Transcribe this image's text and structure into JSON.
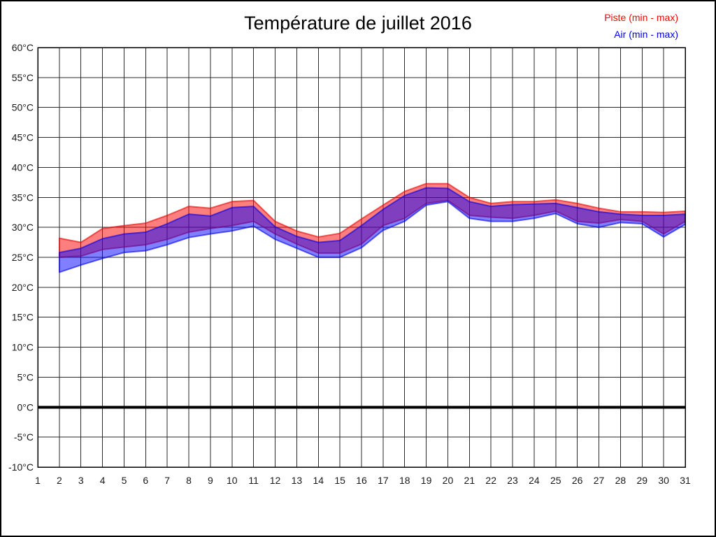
{
  "title": "Température de juillet 2016",
  "legend": {
    "piste": "Piste (min - max)",
    "air": "Air (min - max)"
  },
  "colors": {
    "piste": "#ff0000",
    "air": "#0000ee",
    "piste_fill": "rgba(255,0,0,0.5)",
    "piste_stroke": "rgba(230,0,0,0.6)",
    "air_fill": "rgba(0,0,255,0.5)",
    "air_stroke": "rgba(0,0,230,0.6)",
    "grid": "#2a2a2a",
    "axis": "#000000",
    "zero_line": "#000000"
  },
  "chart_data": {
    "type": "area",
    "subtype": "min-max-bands",
    "title": "Température de juillet 2016",
    "xlabel": "",
    "ylabel": "",
    "units": "°C",
    "xlim": [
      1,
      31
    ],
    "ylim": [
      -10,
      60
    ],
    "y_tick_step": 5,
    "grid": true,
    "zero_line_bold": true,
    "legend_position": "top-right",
    "x_tick_labels": [
      "1",
      "2",
      "3",
      "4",
      "5",
      "6",
      "7",
      "8",
      "9",
      "10",
      "11",
      "12",
      "13",
      "14",
      "15",
      "16",
      "17",
      "18",
      "19",
      "20",
      "21",
      "22",
      "23",
      "24",
      "25",
      "26",
      "27",
      "28",
      "29",
      "30",
      "31"
    ],
    "y_tick_labels": [
      "60°C",
      "55°C",
      "50°C",
      "45°C",
      "40°C",
      "35°C",
      "30°C",
      "25°C",
      "20°C",
      "15°C",
      "10°C",
      "5°C",
      "0°C",
      "-5°C",
      "-10°C"
    ],
    "x": [
      2,
      3,
      4,
      5,
      6,
      7,
      8,
      9,
      10,
      11,
      12,
      13,
      14,
      15,
      16,
      17,
      18,
      19,
      20,
      21,
      22,
      23,
      24,
      25,
      26,
      27,
      28,
      29,
      30,
      31
    ],
    "series": [
      {
        "name": "Piste (min - max)",
        "color": "#ff0000",
        "max": [
          28.2,
          27.5,
          29.8,
          30.3,
          30.7,
          32.0,
          33.5,
          33.2,
          34.3,
          34.5,
          31.0,
          29.4,
          28.4,
          29.0,
          31.4,
          33.7,
          36.0,
          37.3,
          37.3,
          35.0,
          34.0,
          34.3,
          34.3,
          34.6,
          34.0,
          33.2,
          32.6,
          32.6,
          32.5,
          32.7
        ],
        "min": [
          25.0,
          25.2,
          26.3,
          26.7,
          27.1,
          28.0,
          29.2,
          29.8,
          30.3,
          31.0,
          28.9,
          27.2,
          25.7,
          25.7,
          27.2,
          30.3,
          31.5,
          34.0,
          34.5,
          32.0,
          31.7,
          31.5,
          32.0,
          32.7,
          31.0,
          30.7,
          31.3,
          31.0,
          28.9,
          31.0
        ]
      },
      {
        "name": "Air (min - max)",
        "color": "#0000ee",
        "max": [
          25.8,
          26.5,
          28.1,
          28.9,
          29.2,
          30.6,
          32.2,
          31.9,
          33.3,
          33.5,
          30.1,
          28.5,
          27.5,
          27.8,
          30.3,
          33.0,
          35.3,
          36.6,
          36.5,
          34.3,
          33.5,
          33.8,
          33.9,
          34.0,
          33.3,
          32.6,
          32.2,
          32.0,
          32.0,
          32.2
        ],
        "min": [
          22.5,
          23.7,
          24.8,
          25.8,
          26.1,
          27.1,
          28.3,
          28.9,
          29.4,
          30.2,
          28.0,
          26.5,
          25.0,
          25.0,
          26.6,
          29.5,
          31.0,
          33.7,
          34.3,
          31.5,
          31.0,
          31.0,
          31.5,
          32.3,
          30.6,
          30.0,
          30.8,
          30.6,
          28.4,
          30.5
        ]
      }
    ]
  }
}
